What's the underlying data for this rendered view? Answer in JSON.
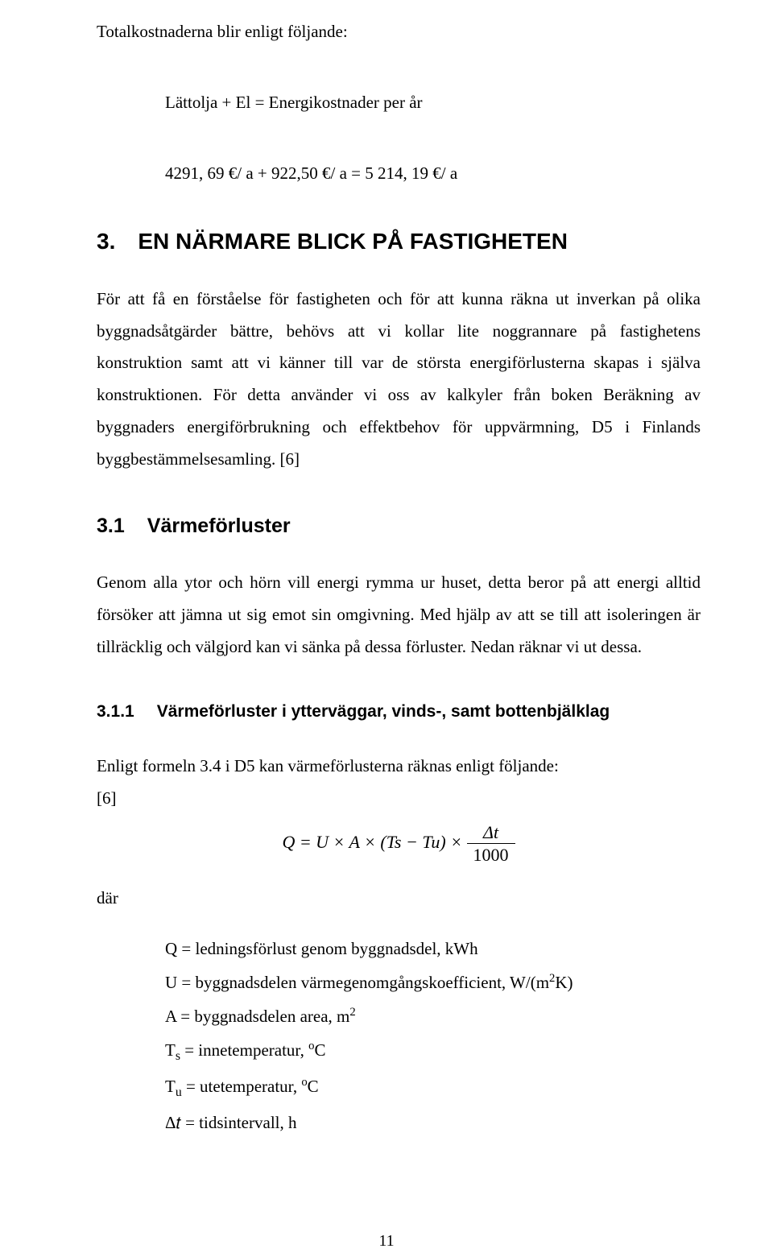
{
  "intro": {
    "line": "Totalkostnaderna blir enligt följande:",
    "eq1": "Lättolja + El = Energikostnader per år",
    "eq2": "4291, 69 €/ a + 922,50 €/ a = 5 214, 19 €/ a"
  },
  "sec3": {
    "num": "3.",
    "title": "EN NÄRMARE BLICK PÅ FASTIGHETEN",
    "para": "För att få en förståelse för fastigheten och för att kunna räkna ut inverkan på olika byggnadsåtgärder bättre, behövs att vi kollar lite noggrannare på fastighetens konstruktion samt att vi känner till var de största energiförlusterna skapas i själva konstruktionen. För detta använder vi oss av kalkyler från boken Beräkning av byggnaders energiförbrukning och effektbehov för uppvärmning, D5 i Finlands byggbestämmelsesamling. [6]"
  },
  "sec31": {
    "num": "3.1",
    "title": "Värmeförluster",
    "para": "Genom alla ytor och hörn vill energi rymma ur huset, detta beror på att energi alltid försöker att jämna ut sig emot sin omgivning. Med hjälp av att se till att isoleringen är tillräcklig och välgjord kan vi sänka på dessa förluster. Nedan räknar vi ut dessa."
  },
  "sec311": {
    "num": "3.1.1",
    "title": "Värmeförluster i ytterväggar, vinds-, samt bottenbjälklag",
    "lead": "Enligt formeln 3.4 i D5 kan värmeförlusterna räknas enligt följande:",
    "cite": "[6]",
    "dar": "där",
    "formula": {
      "left": "Q = U × A × (Ts − Tu) ×",
      "num": "Δt",
      "den": "1000"
    },
    "defs": {
      "Q": "Q = ledningsförlust genom byggnadsdel, kWh",
      "U_pre": "U = byggnadsdelen värmegenomgångskoefficient, W/(m",
      "U_sup": "2",
      "U_post": "K)",
      "A_pre": "A = byggnadsdelen area, m",
      "A_sup": "2",
      "Ts_pre": "T",
      "Ts_sub": "s",
      "Ts_mid": " = innetemperatur, ",
      "Ts_deg": "o",
      "Ts_post": "C",
      "Tu_pre": "T",
      "Tu_sub": "u",
      "Tu_mid": " = utetemperatur, ",
      "Tu_deg": "o",
      "Tu_post": "C",
      "dt": "Δ𝑡 = tidsintervall, h"
    }
  },
  "pagenum": "11"
}
